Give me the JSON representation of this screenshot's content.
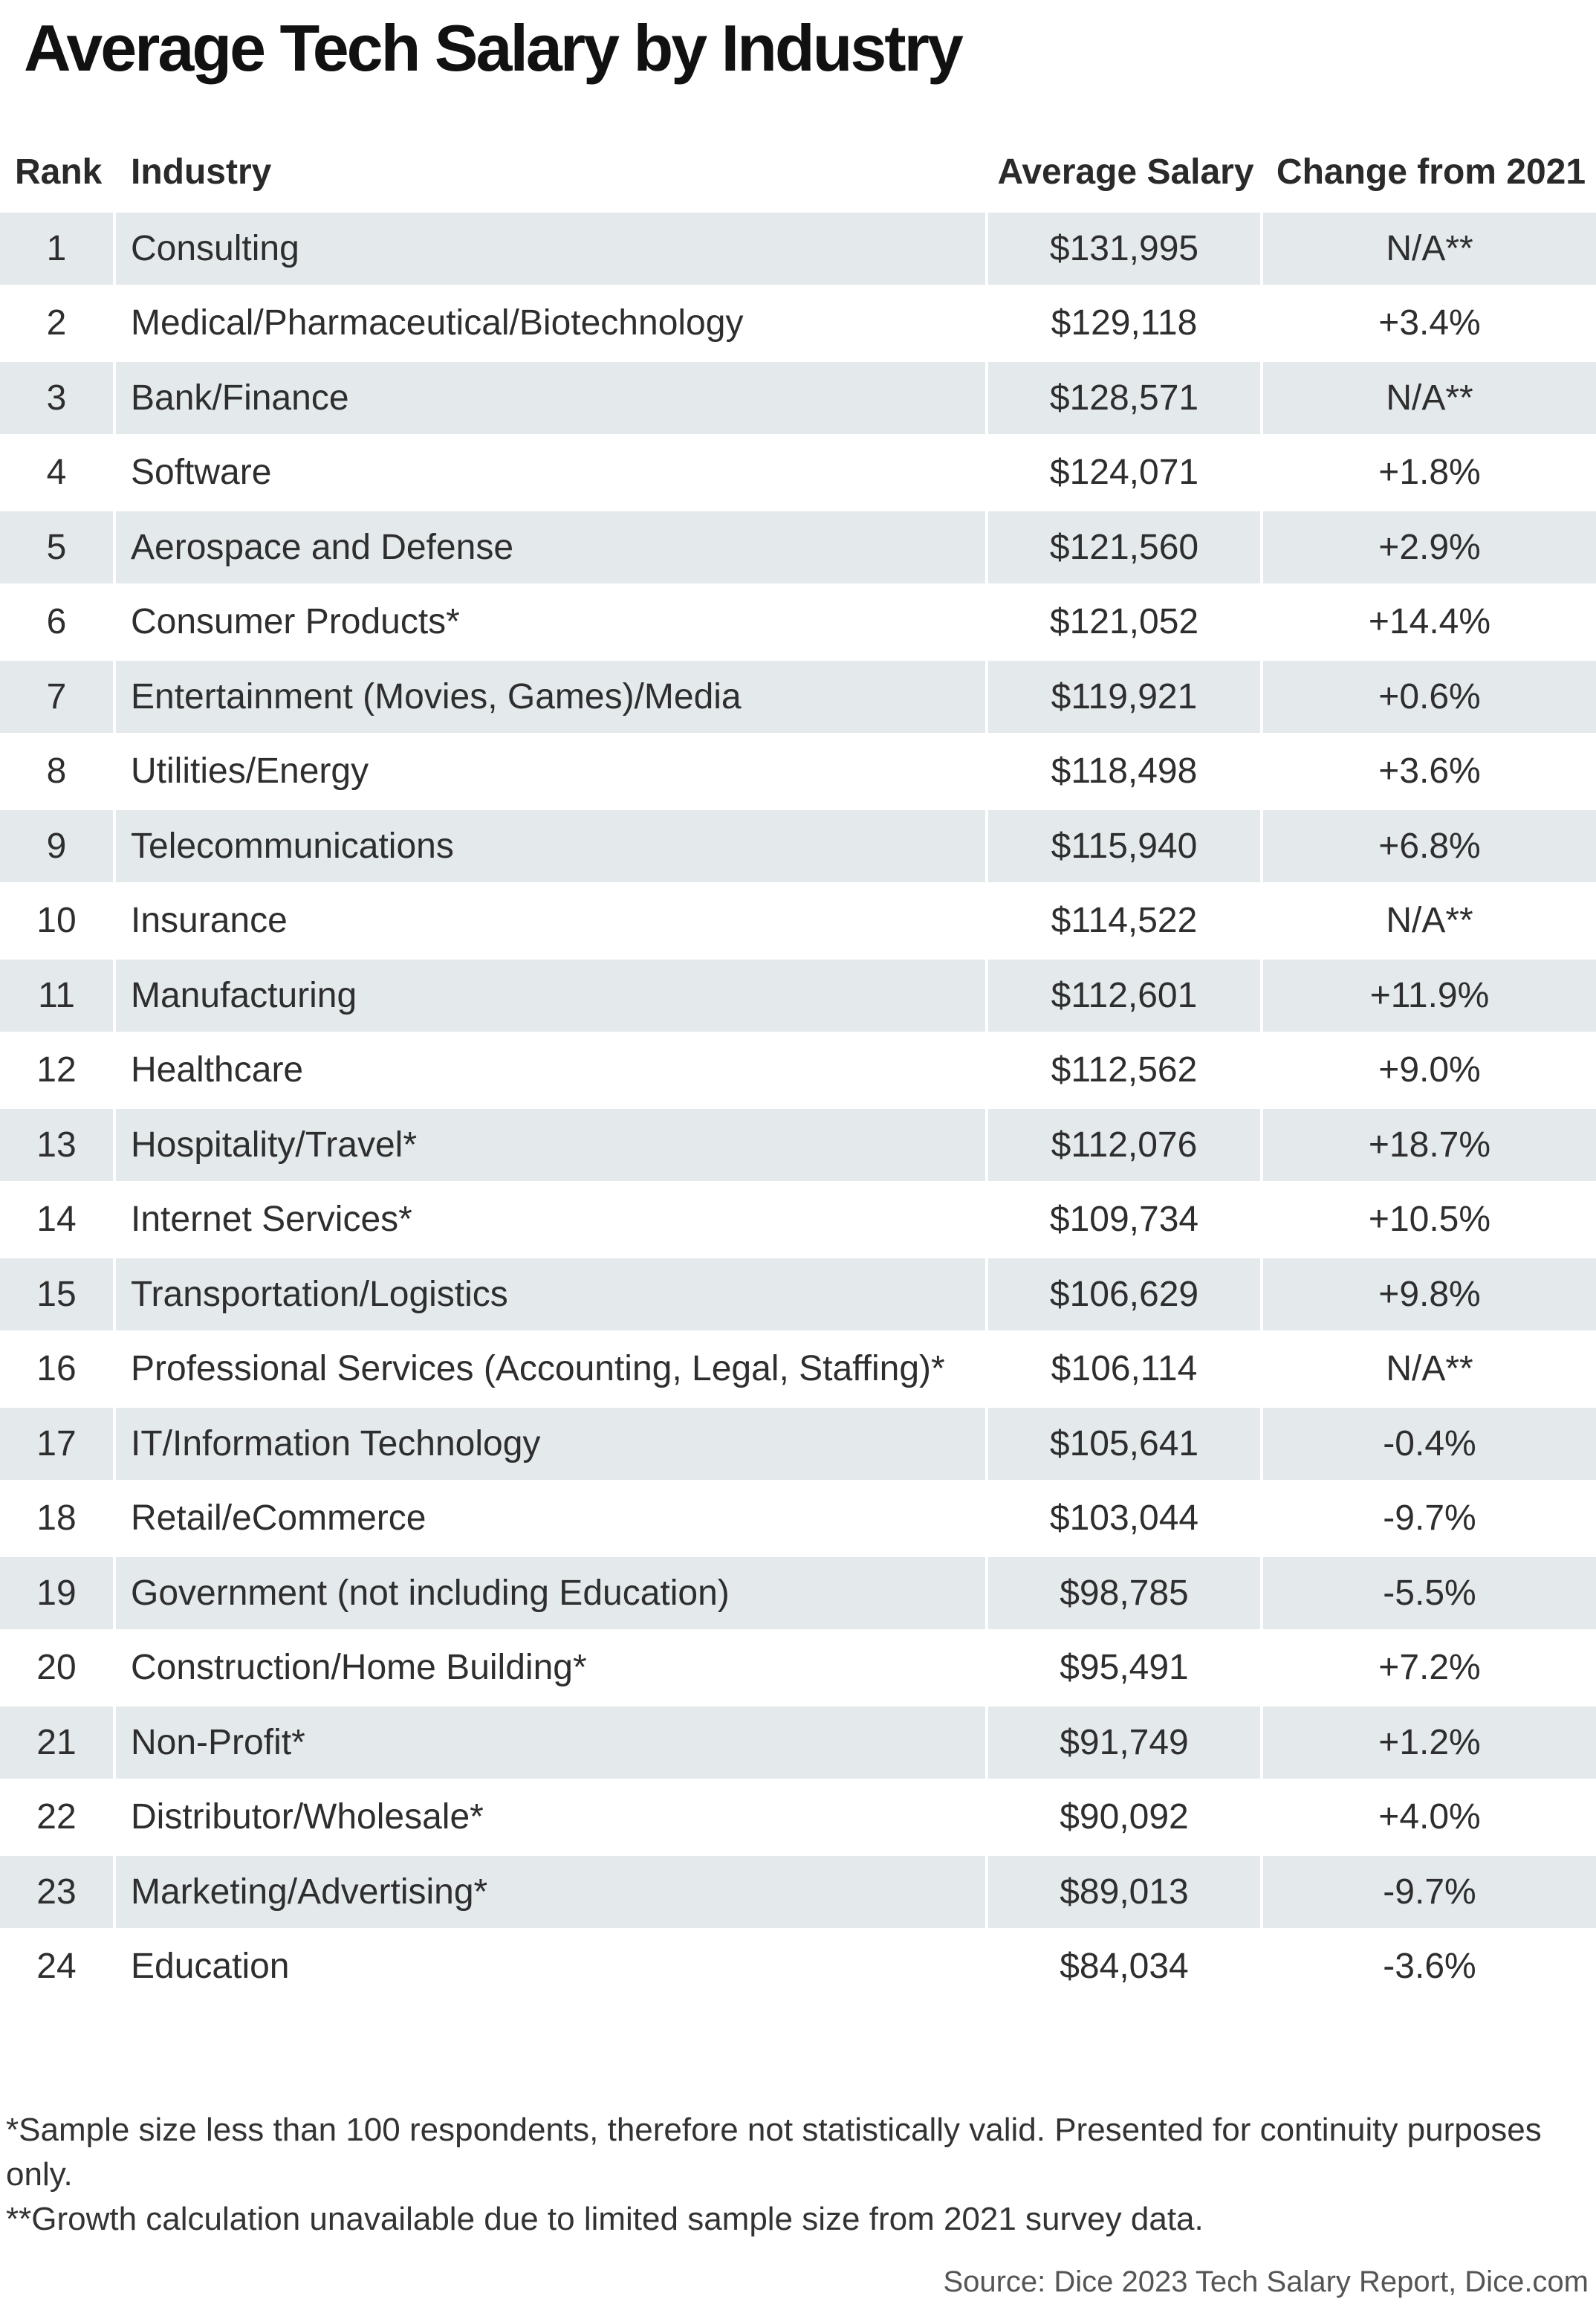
{
  "title": "Average Tech Salary by Industry",
  "columns": {
    "rank": "Rank",
    "industry": "Industry",
    "salary": "Average Salary",
    "change": "Change from 2021"
  },
  "rows": [
    {
      "rank": "1",
      "industry": "Consulting",
      "salary": "$131,995",
      "change": "N/A**"
    },
    {
      "rank": "2",
      "industry": "Medical/Pharmaceutical/Biotechnology",
      "salary": "$129,118",
      "change": "+3.4%"
    },
    {
      "rank": "3",
      "industry": "Bank/Finance",
      "salary": "$128,571",
      "change": "N/A**"
    },
    {
      "rank": "4",
      "industry": "Software",
      "salary": "$124,071",
      "change": "+1.8%"
    },
    {
      "rank": "5",
      "industry": "Aerospace and Defense",
      "salary": "$121,560",
      "change": "+2.9%"
    },
    {
      "rank": "6",
      "industry": "Consumer Products*",
      "salary": "$121,052",
      "change": "+14.4%"
    },
    {
      "rank": "7",
      "industry": "Entertainment (Movies, Games)/Media",
      "salary": "$119,921",
      "change": "+0.6%"
    },
    {
      "rank": "8",
      "industry": "Utilities/Energy",
      "salary": "$118,498",
      "change": "+3.6%"
    },
    {
      "rank": "9",
      "industry": "Telecommunications",
      "salary": "$115,940",
      "change": "+6.8%"
    },
    {
      "rank": "10",
      "industry": "Insurance",
      "salary": "$114,522",
      "change": "N/A**"
    },
    {
      "rank": "11",
      "industry": "Manufacturing",
      "salary": "$112,601",
      "change": "+11.9%"
    },
    {
      "rank": "12",
      "industry": "Healthcare",
      "salary": "$112,562",
      "change": "+9.0%"
    },
    {
      "rank": "13",
      "industry": "Hospitality/Travel*",
      "salary": "$112,076",
      "change": "+18.7%"
    },
    {
      "rank": "14",
      "industry": "Internet Services*",
      "salary": "$109,734",
      "change": "+10.5%"
    },
    {
      "rank": "15",
      "industry": "Transportation/Logistics",
      "salary": "$106,629",
      "change": "+9.8%"
    },
    {
      "rank": "16",
      "industry": "Professional Services (Accounting, Legal, Staffing)*",
      "salary": "$106,114",
      "change": "N/A**"
    },
    {
      "rank": "17",
      "industry": "IT/Information Technology",
      "salary": "$105,641",
      "change": "-0.4%"
    },
    {
      "rank": "18",
      "industry": "Retail/eCommerce",
      "salary": "$103,044",
      "change": "-9.7%"
    },
    {
      "rank": "19",
      "industry": "Government (not including Education)",
      "salary": "$98,785",
      "change": "-5.5%"
    },
    {
      "rank": "20",
      "industry": "Construction/Home Building*",
      "salary": "$95,491",
      "change": "+7.2%"
    },
    {
      "rank": "21",
      "industry": "Non-Profit*",
      "salary": "$91,749",
      "change": "+1.2%"
    },
    {
      "rank": "22",
      "industry": "Distributor/Wholesale*",
      "salary": "$90,092",
      "change": "+4.0%"
    },
    {
      "rank": "23",
      "industry": "Marketing/Advertising*",
      "salary": "$89,013",
      "change": "-9.7%"
    },
    {
      "rank": "24",
      "industry": "Education",
      "salary": "$84,034",
      "change": "-3.6%"
    }
  ],
  "footnotes": [
    "*Sample size less than 100 respondents, therefore not statistically valid. Presented for continuity purposes only.",
    "**Growth calculation unavailable due to limited sample size from 2021 survey data."
  ],
  "source": "Source: Dice 2023 Tech Salary Report, Dice.com",
  "colors": {
    "shaded_row": "#e4e9ec",
    "background": "#ffffff",
    "text": "#2e2e2e"
  },
  "chart_data": {
    "type": "table",
    "title": "Average Tech Salary by Industry",
    "columns": [
      "Rank",
      "Industry",
      "Average Salary",
      "Change from 2021"
    ],
    "categories": [
      "Consulting",
      "Medical/Pharmaceutical/Biotechnology",
      "Bank/Finance",
      "Software",
      "Aerospace and Defense",
      "Consumer Products*",
      "Entertainment (Movies, Games)/Media",
      "Utilities/Energy",
      "Telecommunications",
      "Insurance",
      "Manufacturing",
      "Healthcare",
      "Hospitality/Travel*",
      "Internet Services*",
      "Transportation/Logistics",
      "Professional Services (Accounting, Legal, Staffing)*",
      "IT/Information Technology",
      "Retail/eCommerce",
      "Government (not including Education)",
      "Construction/Home Building*",
      "Non-Profit*",
      "Distributor/Wholesale*",
      "Marketing/Advertising*",
      "Education"
    ],
    "series": [
      {
        "name": "Average Salary",
        "values": [
          131995,
          129118,
          128571,
          124071,
          121560,
          121052,
          119921,
          118498,
          115940,
          114522,
          112601,
          112562,
          112076,
          109734,
          106629,
          106114,
          105641,
          103044,
          98785,
          95491,
          91749,
          90092,
          89013,
          84034
        ]
      },
      {
        "name": "Change from 2021",
        "values": [
          null,
          3.4,
          null,
          1.8,
          2.9,
          14.4,
          0.6,
          3.6,
          6.8,
          null,
          11.9,
          9.0,
          18.7,
          10.5,
          9.8,
          null,
          -0.4,
          -9.7,
          -5.5,
          7.2,
          1.2,
          4.0,
          -9.7,
          -3.6
        ]
      }
    ]
  }
}
